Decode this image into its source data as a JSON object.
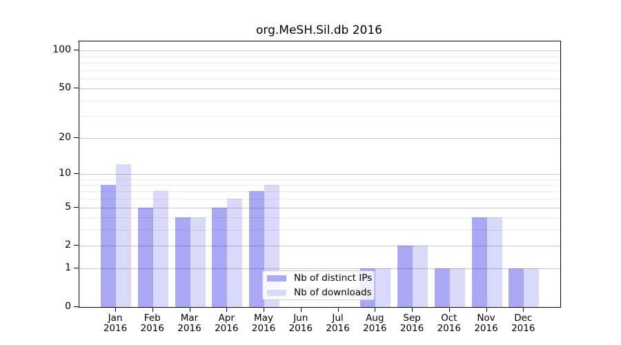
{
  "title": "org.MeSH.Sil.db 2016",
  "chart_data": {
    "type": "bar",
    "title": "org.MeSH.Sil.db 2016",
    "x_categories": [
      "Jan",
      "Feb",
      "Mar",
      "Apr",
      "May",
      "Jun",
      "Jul",
      "Aug",
      "Sep",
      "Oct",
      "Nov",
      "Dec"
    ],
    "x_year_label": "2016",
    "series": [
      {
        "key": "distinct-ips",
        "name": "Nb of distinct IPs",
        "color": "#a8a8f5",
        "values": [
          8,
          5,
          4,
          5,
          7,
          0,
          0,
          1,
          2,
          1,
          4,
          1
        ]
      },
      {
        "key": "downloads",
        "name": "Nb of downloads",
        "color": "#d9d9fa",
        "values": [
          12,
          7,
          4,
          6,
          8,
          0,
          0,
          1,
          2,
          1,
          4,
          1
        ]
      }
    ],
    "y_axis": {
      "scale": "log10(1+x)",
      "major_ticks": [
        0,
        1,
        2,
        5,
        10,
        20,
        50,
        100
      ],
      "minor_ticks": [
        3,
        4,
        6,
        7,
        8,
        9,
        30,
        40,
        60,
        70,
        80,
        90
      ],
      "range": [
        0,
        119
      ]
    },
    "legend": {
      "position": "lower-center",
      "entries": [
        "Nb of distinct IPs",
        "Nb of downloads"
      ]
    },
    "grid": true
  }
}
